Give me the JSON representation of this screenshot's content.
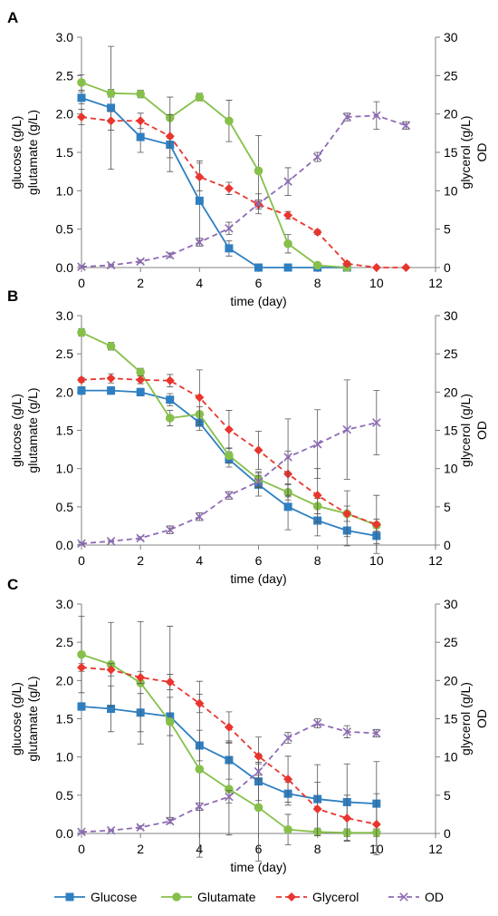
{
  "colors": {
    "glucose": "#2E7FC1",
    "glutamate": "#86C04A",
    "glycerol": "#E8352E",
    "od": "#8E6BB5",
    "axis": "#808080",
    "errorbar": "#555555"
  },
  "legend": [
    {
      "key": "glucose",
      "label": "Glucose",
      "style": "solid",
      "marker": "square"
    },
    {
      "key": "glutamate",
      "label": "Glutamate",
      "style": "solid",
      "marker": "circle"
    },
    {
      "key": "glycerol",
      "label": "Glycerol",
      "style": "dashed",
      "marker": "diamond"
    },
    {
      "key": "od",
      "label": "OD",
      "style": "dashed",
      "marker": "x"
    }
  ],
  "chart_data": [
    {
      "type": "line",
      "panel_label": "A",
      "xlabel": "time (day)",
      "ylabel_left": [
        "glucose (g/L)",
        "glutamate (g/L)"
      ],
      "ylabel_right": [
        "glycerol (g/L)",
        "OD"
      ],
      "xlim": [
        0,
        12
      ],
      "ylim_left": [
        0,
        3.0
      ],
      "ylim_right": [
        0,
        30
      ],
      "xticks": [
        "0",
        "2",
        "4",
        "6",
        "8",
        "10",
        "12"
      ],
      "yticks_left": [
        "0.0",
        "0.5",
        "1.0",
        "1.5",
        "2.0",
        "2.5",
        "3.0"
      ],
      "yticks_right": [
        "0",
        "5",
        "10",
        "15",
        "20",
        "25",
        "30"
      ],
      "legend_position": "bottom",
      "series": [
        {
          "key": "glucose",
          "name": "Glucose",
          "axis": "left",
          "x": [
            0,
            1,
            2,
            3,
            4,
            5,
            6,
            7,
            8,
            9
          ],
          "y": [
            2.21,
            2.08,
            1.7,
            1.6,
            0.87,
            0.25,
            0.0,
            0.0,
            0.0,
            0.0
          ],
          "err": [
            0.08,
            0.8,
            0.2,
            0.35,
            0.52,
            0.1,
            0,
            0,
            0,
            0
          ]
        },
        {
          "key": "glutamate",
          "name": "Glutamate",
          "axis": "left",
          "x": [
            0,
            1,
            2,
            3,
            4,
            5,
            6,
            7,
            8,
            9
          ],
          "y": [
            2.41,
            2.27,
            2.26,
            1.95,
            2.22,
            1.91,
            1.26,
            0.31,
            0.03,
            0.0
          ],
          "err": [
            0.1,
            0.05,
            0.05,
            0.27,
            0.05,
            0.27,
            0.46,
            0.12,
            0.02,
            0
          ]
        },
        {
          "key": "glycerol",
          "name": "Glycerol",
          "axis": "right",
          "x": [
            0,
            1,
            2,
            3,
            4,
            5,
            6,
            7,
            8,
            9,
            10,
            11
          ],
          "y": [
            19.6,
            19.1,
            19.1,
            17.1,
            11.8,
            10.3,
            8.2,
            6.8,
            4.6,
            0.5,
            0.0,
            0.0
          ],
          "err": [
            1.0,
            1.2,
            1.0,
            2.8,
            1.8,
            0.8,
            0.6,
            0.5,
            0.3,
            0.3,
            0,
            0
          ]
        },
        {
          "key": "od",
          "name": "OD",
          "axis": "right",
          "x": [
            0,
            1,
            2,
            3,
            4,
            5,
            6,
            7,
            8,
            9,
            10,
            11
          ],
          "y": [
            0.1,
            0.3,
            0.8,
            1.6,
            3.3,
            5.1,
            8.3,
            11.2,
            14.4,
            19.6,
            19.8,
            18.5
          ],
          "err": [
            0.1,
            0.1,
            0.2,
            0.3,
            0.5,
            0.8,
            1.3,
            1.8,
            0.6,
            0.5,
            1.8,
            0.5
          ]
        }
      ]
    },
    {
      "type": "line",
      "panel_label": "B",
      "xlabel": "time (day)",
      "ylabel_left": [
        "glucose (g/L)",
        "glutamate (g/L)"
      ],
      "ylabel_right": [
        "glycerol (g/L)",
        "OD"
      ],
      "xlim": [
        0,
        12
      ],
      "ylim_left": [
        0,
        3.0
      ],
      "ylim_right": [
        0,
        30
      ],
      "xticks": [
        "0",
        "2",
        "4",
        "6",
        "8",
        "10",
        "12"
      ],
      "yticks_left": [
        "0.0",
        "0.5",
        "1.0",
        "1.5",
        "2.0",
        "2.5",
        "3.0"
      ],
      "yticks_right": [
        "0",
        "5",
        "10",
        "15",
        "20",
        "25",
        "30"
      ],
      "legend_position": "bottom",
      "series": [
        {
          "key": "glucose",
          "name": "Glucose",
          "axis": "left",
          "x": [
            0,
            1,
            2,
            3,
            4,
            5,
            6,
            7,
            8,
            9,
            10
          ],
          "y": [
            2.02,
            2.02,
            2.0,
            1.9,
            1.6,
            1.12,
            0.79,
            0.5,
            0.32,
            0.19,
            0.12
          ],
          "err": [
            0.05,
            0.05,
            0.05,
            0.08,
            0.1,
            0.1,
            0.15,
            0.3,
            0.2,
            0.2,
            0.1
          ]
        },
        {
          "key": "glutamate",
          "name": "Glutamate",
          "axis": "left",
          "x": [
            0,
            1,
            2,
            3,
            4,
            5,
            6,
            7,
            8,
            9,
            10
          ],
          "y": [
            2.78,
            2.6,
            2.26,
            1.66,
            1.71,
            1.17,
            0.86,
            0.69,
            0.51,
            0.41,
            0.26
          ],
          "err": [
            0.05,
            0.05,
            0.05,
            0.1,
            0.1,
            0.1,
            0.1,
            0.1,
            0.1,
            0.1,
            0.08
          ]
        },
        {
          "key": "glycerol",
          "name": "Glycerol",
          "axis": "right",
          "x": [
            0,
            1,
            2,
            3,
            4,
            5,
            6,
            7,
            8,
            9,
            10
          ],
          "y": [
            21.6,
            21.8,
            21.6,
            21.5,
            19.3,
            15.1,
            12.4,
            9.3,
            6.5,
            4.1,
            2.7
          ],
          "err": [
            0.3,
            0.6,
            0.5,
            0.8,
            3.6,
            2.5,
            2.5,
            3.0,
            3.5,
            3.0,
            3.8
          ]
        },
        {
          "key": "od",
          "name": "OD",
          "axis": "right",
          "x": [
            0,
            1,
            2,
            3,
            4,
            5,
            6,
            7,
            8,
            9,
            10
          ],
          "y": [
            0.2,
            0.5,
            0.9,
            2.0,
            3.7,
            6.5,
            8.3,
            11.5,
            13.2,
            15.1,
            16.0
          ],
          "err": [
            0.1,
            0.1,
            0.2,
            0.5,
            0.5,
            0.5,
            0.8,
            5.0,
            4.5,
            6.5,
            4.2
          ]
        }
      ]
    },
    {
      "type": "line",
      "panel_label": "C",
      "xlabel": "time (day)",
      "ylabel_left": [
        "glucose (g/L)",
        "glutamate (g/L)"
      ],
      "ylabel_right": [
        "glycerol (g/L)",
        "OD"
      ],
      "xlim": [
        0,
        12
      ],
      "ylim_left": [
        0,
        3.0
      ],
      "ylim_right": [
        0,
        30
      ],
      "xticks": [
        "0",
        "2",
        "4",
        "6",
        "8",
        "10",
        "12"
      ],
      "yticks_left": [
        "0.0",
        "0.5",
        "1.0",
        "1.5",
        "2.0",
        "2.5",
        "3.0"
      ],
      "yticks_right": [
        "0",
        "5",
        "10",
        "15",
        "20",
        "25",
        "30"
      ],
      "legend_position": "bottom",
      "series": [
        {
          "key": "glucose",
          "name": "Glucose",
          "axis": "left",
          "x": [
            0,
            1,
            2,
            3,
            4,
            5,
            6,
            7,
            8,
            9,
            10
          ],
          "y": [
            1.66,
            1.63,
            1.58,
            1.53,
            1.15,
            0.96,
            0.68,
            0.52,
            0.45,
            0.41,
            0.39
          ],
          "err": [
            0.05,
            0.3,
            0.25,
            0.25,
            0.2,
            0.25,
            0.25,
            0.15,
            0.45,
            0.5,
            0.55
          ]
        },
        {
          "key": "glutamate",
          "name": "Glutamate",
          "axis": "left",
          "x": [
            0,
            1,
            2,
            3,
            4,
            5,
            6,
            7,
            8,
            9,
            10
          ],
          "y": [
            2.34,
            2.21,
            1.97,
            1.46,
            0.84,
            0.58,
            0.34,
            0.05,
            0.02,
            0.01,
            0.01
          ],
          "err": [
            0.5,
            0.55,
            0.8,
            1.25,
            1.15,
            0.6,
            0.7,
            0.2,
            0.05,
            0.05,
            0.05
          ]
        },
        {
          "key": "glycerol",
          "name": "Glycerol",
          "axis": "right",
          "x": [
            0,
            1,
            2,
            3,
            4,
            5,
            6,
            7,
            8,
            9,
            10
          ],
          "y": [
            21.7,
            21.4,
            20.4,
            19.8,
            17.0,
            13.9,
            10.1,
            7.1,
            3.2,
            2.0,
            1.2
          ],
          "err": [
            0.5,
            0.8,
            0.8,
            1.0,
            1.2,
            2.0,
            2.5,
            3.0,
            3.5,
            3.0,
            4.0
          ]
        },
        {
          "key": "od",
          "name": "OD",
          "axis": "right",
          "x": [
            0,
            1,
            2,
            3,
            4,
            5,
            6,
            7,
            8,
            9,
            10
          ],
          "y": [
            0.2,
            0.4,
            0.8,
            1.6,
            3.5,
            4.8,
            8.1,
            12.5,
            14.4,
            13.3,
            13.1
          ],
          "err": [
            0.1,
            0.1,
            0.2,
            0.3,
            0.5,
            0.8,
            1.0,
            0.7,
            0.6,
            0.8,
            0.5
          ]
        }
      ]
    }
  ]
}
